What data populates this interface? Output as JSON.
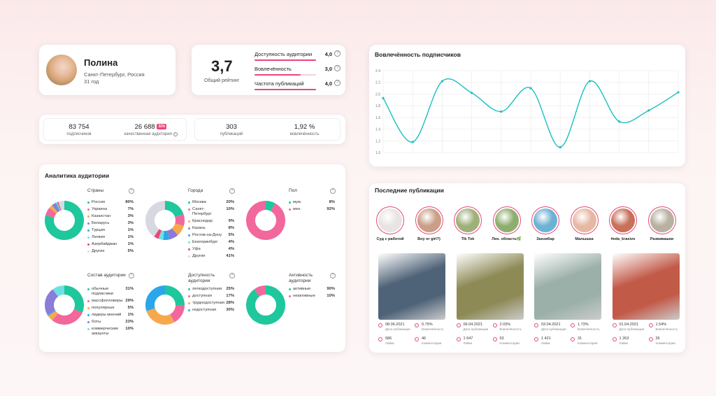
{
  "profile": {
    "name": "Полина",
    "city": "Санкт-Петербург, Россия",
    "age": "31 год"
  },
  "rating": {
    "value": "3,7",
    "label": "Общий рейтинг",
    "rows": [
      {
        "label": "Доступность аудитории",
        "value": "4,0",
        "fill": 1.0
      },
      {
        "label": "Вовлечённость",
        "value": "3,0",
        "fill": 0.75
      },
      {
        "label": "Частота публикаций",
        "value": "4,0",
        "fill": 1.0
      }
    ]
  },
  "stats": {
    "subscribers": {
      "value": "83 754",
      "label": "подписчиков"
    },
    "quality": {
      "value": "26 688",
      "badge": "32%",
      "label": "качественная аудитория"
    },
    "publications": {
      "value": "303",
      "label": "публикаций"
    },
    "engagement": {
      "value": "1,92 %",
      "label": "вовлечённость"
    }
  },
  "audience": {
    "title": "Аналитика аудитории",
    "blocks": [
      {
        "title": "Страны",
        "items": [
          {
            "label": "Россия",
            "pct": "80%",
            "value": 80,
            "color": "#1fc79c"
          },
          {
            "label": "Украина",
            "pct": "7%",
            "value": 7,
            "color": "#f2679c"
          },
          {
            "label": "Казахстан",
            "pct": "3%",
            "value": 3,
            "color": "#f5a94c"
          },
          {
            "label": "Беларусь",
            "pct": "3%",
            "value": 3,
            "color": "#8a7cd8"
          },
          {
            "label": "Турция",
            "pct": "1%",
            "value": 1,
            "color": "#2aa7e8"
          },
          {
            "label": "Латвия",
            "pct": "1%",
            "value": 1,
            "color": "#6fe0e0"
          },
          {
            "label": "Азербайджан",
            "pct": "1%",
            "value": 1,
            "color": "#e94677"
          },
          {
            "label": "Другие",
            "pct": "5%",
            "value": 5,
            "color": "#d8d8e0"
          }
        ]
      },
      {
        "title": "Города",
        "items": [
          {
            "label": "Москва",
            "pct": "20%",
            "value": 20,
            "color": "#1fc79c"
          },
          {
            "label": "Санкт-Петербург",
            "pct": "10%",
            "value": 10,
            "color": "#f2679c",
            "tall": true
          },
          {
            "label": "Краснодар",
            "pct": "9%",
            "value": 9,
            "color": "#f5a94c"
          },
          {
            "label": "Казань",
            "pct": "8%",
            "value": 8,
            "color": "#8a7cd8"
          },
          {
            "label": "Ростов-на-Дону",
            "pct": "5%",
            "value": 5,
            "color": "#2aa7e8"
          },
          {
            "label": "Екатеринбург",
            "pct": "4%",
            "value": 4,
            "color": "#6fe0e0"
          },
          {
            "label": "Уфа",
            "pct": "4%",
            "value": 4,
            "color": "#e94677"
          },
          {
            "label": "Другие",
            "pct": "41%",
            "value": 41,
            "color": "#d8d8e0"
          }
        ]
      },
      {
        "title": "Пол",
        "items": [
          {
            "label": "муж.",
            "pct": "8%",
            "value": 8,
            "color": "#1fc79c"
          },
          {
            "label": "жен.",
            "pct": "92%",
            "value": 92,
            "color": "#f2679c"
          }
        ]
      },
      {
        "title": "Состав аудитории",
        "items": [
          {
            "label": "обычные подписчики",
            "pct": "31%",
            "value": 31,
            "color": "#1fc79c",
            "tall": true
          },
          {
            "label": "массфолловеры",
            "pct": "29%",
            "value": 29,
            "color": "#f2679c"
          },
          {
            "label": "популярные",
            "pct": "5%",
            "value": 5,
            "color": "#f5a94c"
          },
          {
            "label": "лидеры мнений",
            "pct": "1%",
            "value": 1,
            "color": "#2aa7e8"
          },
          {
            "label": "боты",
            "pct": "23%",
            "value": 23,
            "color": "#8a7cd8"
          },
          {
            "label": "коммерческие аккаунты",
            "pct": "10%",
            "value": 10,
            "color": "#6fe0e0",
            "tall": true
          }
        ]
      },
      {
        "title": "Доступность аудитории",
        "items": [
          {
            "label": "легкодоступная",
            "pct": "25%",
            "value": 25,
            "color": "#1fc79c"
          },
          {
            "label": "доступная",
            "pct": "17%",
            "value": 17,
            "color": "#f2679c"
          },
          {
            "label": "труднодоступная",
            "pct": "28%",
            "value": 28,
            "color": "#f5a94c"
          },
          {
            "label": "недоступная",
            "pct": "30%",
            "value": 30,
            "color": "#2aa7e8"
          }
        ]
      },
      {
        "title": "Активность аудитории",
        "items": [
          {
            "label": "активные",
            "pct": "90%",
            "value": 90,
            "color": "#1fc79c"
          },
          {
            "label": "неактивные",
            "pct": "10%",
            "value": 10,
            "color": "#f2679c"
          }
        ]
      }
    ]
  },
  "chart_data": {
    "type": "line",
    "title": "Вовлечённость подписчиков",
    "x": [
      0,
      1,
      2,
      3,
      4,
      5,
      6,
      7,
      8,
      9,
      10
    ],
    "y": [
      1.93,
      1.18,
      2.22,
      2.02,
      1.7,
      2.1,
      1.09,
      2.22,
      1.53,
      1.72,
      2.03
    ],
    "ylim": [
      1.0,
      2.4
    ],
    "yticks": [
      "2.4",
      "2.2",
      "2.0",
      "1.8",
      "1.6",
      "1.4",
      "1.2",
      "1.0"
    ],
    "grid": true,
    "color": "#1abfc0"
  },
  "pubs": {
    "title": "Последние публикации",
    "stories": [
      {
        "label": "Суд с работой",
        "color": "#e9e4e4"
      },
      {
        "label": "Boy or girl?)",
        "color": "#c99f86"
      },
      {
        "label": "Tik Tok",
        "color": "#9fb07a"
      },
      {
        "label": "Лен. область🌿",
        "color": "#8eae6f"
      },
      {
        "label": "Занзибар",
        "color": "#6cb2d3"
      },
      {
        "label": "Малышка",
        "color": "#e6b8a3"
      },
      {
        "label": "#eda_krasivo",
        "color": "#c8705a"
      },
      {
        "label": "Развивашки",
        "color": "#b8b0a0"
      }
    ],
    "posts": [
      {
        "date": "08.06.2021",
        "date_label": "Дата публикации",
        "engagement": "0.75%",
        "engagement_label": "Вовлечённость",
        "likes": "586",
        "likes_label": "Лайки",
        "comments": "46",
        "comments_label": "Комментарии",
        "color": "#4f6378"
      },
      {
        "date": "06.04.2021",
        "date_label": "Дата публикации",
        "engagement": "2.03%",
        "engagement_label": "Вовлечённость",
        "likes": "1 647",
        "likes_label": "Лайки",
        "comments": "53",
        "comments_label": "Комментарии",
        "color": "#8d8a56"
      },
      {
        "date": "03.04.2021",
        "date_label": "Дата публикации",
        "engagement": "1.73%",
        "engagement_label": "Вовлечённость",
        "likes": "1 421",
        "likes_label": "Лайки",
        "comments": "31",
        "comments_label": "Комментарии",
        "color": "#9bb0a8"
      },
      {
        "date": "01.04.2021",
        "date_label": "Дата публикации",
        "engagement": "1.54%",
        "engagement_label": "Вовлечённость",
        "likes": "1 263",
        "likes_label": "Лайки",
        "comments": "26",
        "comments_label": "Комментарии",
        "color": "#c25a48"
      }
    ]
  }
}
